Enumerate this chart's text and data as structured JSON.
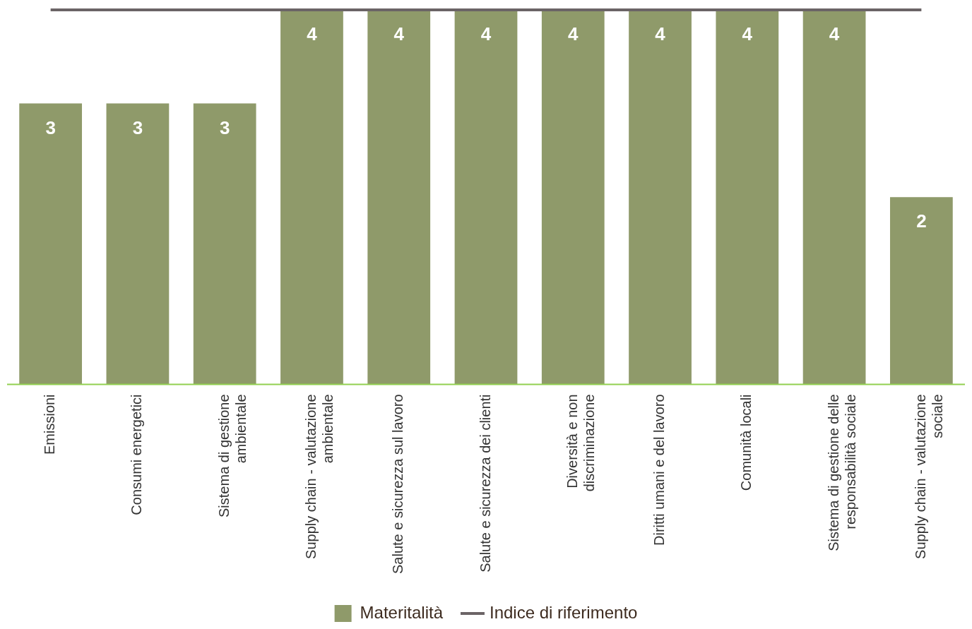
{
  "chart_data": {
    "type": "bar",
    "categories": [
      "Emissioni",
      "Consumi energetici",
      "Sistema di gestione ambientale",
      "Supply chain - valutazione ambientale",
      "Salute e sicurezza sul lavoro",
      "Salute e sicurezza dei clienti",
      "Diversità e non discriminazione",
      "Diritti umani e del lavoro",
      "Comunità locali",
      "Sistema di gestione delle responsabilità sociale",
      "Supply chain - valutazione sociale"
    ],
    "series": [
      {
        "name": "Materitalità",
        "color": "#8f9a6a",
        "values": [
          3,
          3,
          3,
          4,
          4,
          4,
          4,
          4,
          4,
          4,
          2
        ],
        "value_labels": [
          "3",
          "3",
          "3",
          "4",
          "4",
          "4",
          "4",
          "4",
          "4",
          "4",
          "2"
        ]
      },
      {
        "name": "Indice di riferimento",
        "type": "line",
        "color": "#6b6466",
        "values": [
          4,
          4,
          4,
          4,
          4,
          4,
          4,
          4,
          4,
          4,
          4
        ]
      }
    ],
    "legend": "bottom",
    "tick_labels": "x",
    "grid": false,
    "marker": "none",
    "line_style": "solid"
  }
}
